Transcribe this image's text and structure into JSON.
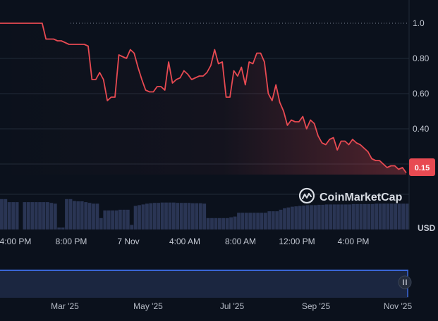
{
  "brand": {
    "name": "CoinMarketCap",
    "icon": "coinmarketcap-logo-icon"
  },
  "colors": {
    "background": "#0b111c",
    "line": "#e84a52",
    "badge": "#e84a52",
    "volume": "#2a3554",
    "gridline": "#222a38",
    "navigator_fill": "#1b2640",
    "navigator_border": "#3a66d6"
  },
  "price_badge": "0.15",
  "y_axis_unit": "USD",
  "chart_data": {
    "type": "line",
    "title": "",
    "xlabel": "",
    "ylabel": "",
    "y_ticks": [
      "0.40",
      "0.60",
      "0.80",
      "1.0"
    ],
    "y_scale": {
      "min": 0.14,
      "max": 1.0
    },
    "x_ticks": [
      "4:00 PM",
      "8:00 PM",
      "7 Nov",
      "4:00 AM",
      "8:00 AM",
      "12:00 PM",
      "4:00 PM"
    ],
    "reference_line": 1.0,
    "grid": true,
    "series": [
      {
        "values": [
          1.0,
          1.0,
          1.0,
          1.0,
          1.0,
          1.0,
          1.0,
          1.0,
          1.0,
          1.0,
          1.0,
          1.0,
          0.91,
          0.91,
          0.91,
          0.9,
          0.9,
          0.89,
          0.88,
          0.88,
          0.88,
          0.88,
          0.88,
          0.87,
          0.68,
          0.68,
          0.72,
          0.68,
          0.56,
          0.58,
          0.58,
          0.82,
          0.81,
          0.8,
          0.85,
          0.83,
          0.75,
          0.68,
          0.62,
          0.61,
          0.61,
          0.64,
          0.64,
          0.62,
          0.78,
          0.66,
          0.68,
          0.69,
          0.73,
          0.71,
          0.68,
          0.69,
          0.7,
          0.7,
          0.72,
          0.76,
          0.85,
          0.77,
          0.78,
          0.58,
          0.58,
          0.73,
          0.7,
          0.75,
          0.65,
          0.78,
          0.77,
          0.83,
          0.83,
          0.78,
          0.6,
          0.56,
          0.65,
          0.55,
          0.5,
          0.42,
          0.45,
          0.44,
          0.44,
          0.47,
          0.4,
          0.45,
          0.43,
          0.36,
          0.32,
          0.31,
          0.34,
          0.35,
          0.28,
          0.33,
          0.33,
          0.31,
          0.34,
          0.32,
          0.31,
          0.29,
          0.27,
          0.23,
          0.22,
          0.22,
          0.2,
          0.18,
          0.19,
          0.19,
          0.17,
          0.18,
          0.15
        ]
      }
    ],
    "volume": {
      "values": [
        0.8,
        0.8,
        0.72,
        0.72,
        0.72,
        0.0,
        0.72,
        0.72,
        0.72,
        0.72,
        0.72,
        0.72,
        0.72,
        0.7,
        0.68,
        0.05,
        0.05,
        0.8,
        0.8,
        0.75,
        0.74,
        0.74,
        0.72,
        0.7,
        0.68,
        0.68,
        0.3,
        0.5,
        0.5,
        0.5,
        0.5,
        0.52,
        0.52,
        0.52,
        0.12,
        0.62,
        0.64,
        0.66,
        0.68,
        0.69,
        0.7,
        0.7,
        0.71,
        0.71,
        0.71,
        0.71,
        0.7,
        0.7,
        0.7,
        0.7,
        0.69,
        0.69,
        0.69,
        0.68,
        0.3,
        0.3,
        0.3,
        0.3,
        0.3,
        0.3,
        0.32,
        0.34,
        0.44,
        0.44,
        0.44,
        0.44,
        0.44,
        0.44,
        0.44,
        0.44,
        0.48,
        0.48,
        0.48,
        0.52,
        0.56,
        0.58,
        0.6,
        0.61,
        0.62,
        0.63,
        0.64,
        0.64,
        0.64,
        0.65,
        0.65,
        0.66,
        0.66,
        0.66,
        0.66,
        0.66,
        0.66,
        0.66,
        0.67,
        0.67,
        0.67,
        0.67,
        0.67,
        0.67,
        0.68,
        0.68,
        0.68,
        0.68,
        0.68,
        0.68,
        0.68,
        0.68,
        0.68
      ]
    },
    "navigator": {
      "labels": [
        "Mar '25",
        "May '25",
        "Jul '25",
        "Sep '25",
        "Nov '25"
      ]
    }
  }
}
